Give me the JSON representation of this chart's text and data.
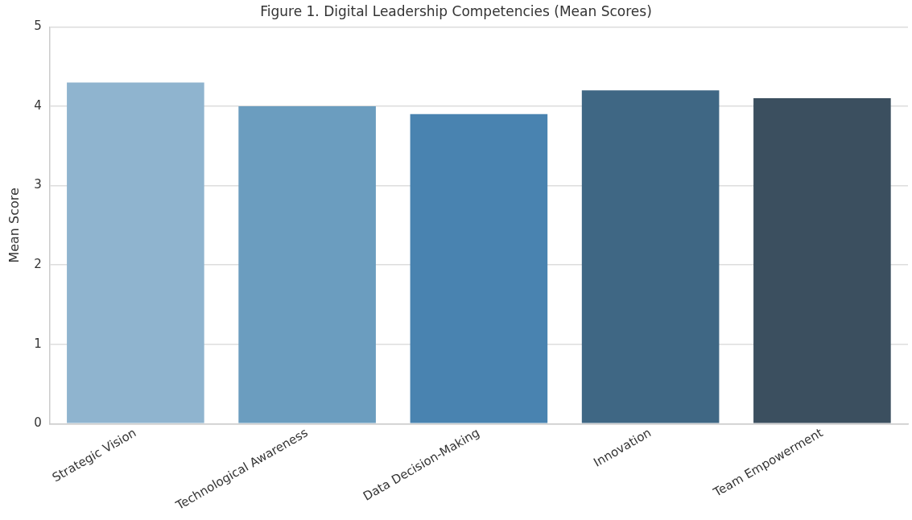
{
  "chart_data": {
    "type": "bar",
    "title": "Figure 1. Digital Leadership Competencies (Mean Scores)",
    "ylabel": "Mean Score",
    "categories": [
      "Strategic Vision",
      "Technological Awareness",
      "Data Decision-Making",
      "Innovation",
      "Team Empowerment"
    ],
    "values": [
      4.3,
      4.0,
      3.9,
      4.2,
      4.1
    ],
    "colors": [
      "#8fb4cf",
      "#6b9dbf",
      "#4983b0",
      "#3f6784",
      "#3b4f5f"
    ],
    "ylim": [
      0,
      5
    ],
    "yticks": [
      0,
      1,
      2,
      3,
      4,
      5
    ],
    "grid": "y"
  }
}
